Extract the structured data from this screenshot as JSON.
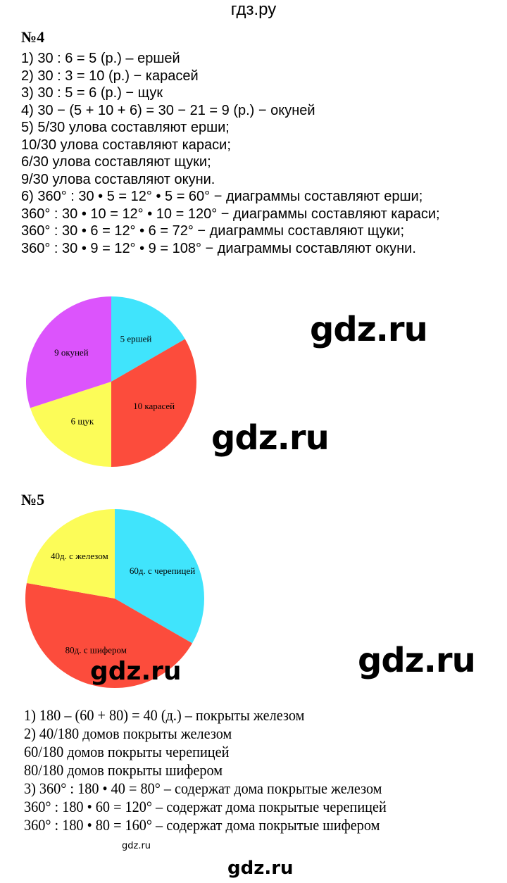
{
  "header": {
    "site": "гдз.ру"
  },
  "task4": {
    "title": "№4",
    "lines": [
      "1) 30 : 6 = 5 (р.) – ершей",
      "2) 30 : 3 = 10 (р.) − карасей",
      "3) 30 : 5 = 6 (р.) − щук",
      "4) 30 − (5 + 10 + 6) = 30 − 21 = 9 (р.) − окуней",
      "5) 5/30 улова составляют ерши;",
      "10/30 улова составляют караси;",
      "6/30 улова составляют щуки;",
      "9/30 улова составляют окуни.",
      "6) 360° : 30 • 5 = 12° • 5 = 60° − диаграммы составляют ерши;",
      "360° : 30 • 10 = 12° • 10 = 120° − диаграммы составляют караси;",
      "360° : 30 • 6 = 12° • 6 = 72° − диаграммы составляют щуки;",
      "360° : 30 • 9 = 12° • 9 = 108° − диаграммы составляют окуни."
    ]
  },
  "task5": {
    "title": "№5",
    "lines": [
      "1) 180 – (60 + 80) = 40 (д.) – покрыты железом",
      "2) 40/180 домов покрыты железом",
      "60/180 домов покрыты черепицей",
      "80/180 домов покрыты шифером",
      "3) 360° : 180 • 40 = 80° – содержат дома покрытые железом",
      "360° : 180 • 60 = 120° – содержат дома покрытые черепицей",
      "360° : 180 • 80 = 160° – содержат дома покрытые шифером"
    ]
  },
  "watermarks": [
    "gdz.ru",
    "gdz.ru",
    "gdz.ru",
    "gdz.ru",
    "gdz.ru",
    "gdz.ru"
  ],
  "chart_data": [
    {
      "type": "pie",
      "start": "top, clockwise",
      "slices": [
        {
          "label": "5 ершей",
          "value": 5,
          "color": "#40e4fc"
        },
        {
          "label": "10 карасей",
          "value": 10,
          "color": "#fc4c3c"
        },
        {
          "label": "6 щук",
          "value": 6,
          "color": "#fcfc58"
        },
        {
          "label": "9 окуней",
          "value": 9,
          "color": "#dc54fc"
        }
      ]
    },
    {
      "type": "pie",
      "start": "top, clockwise",
      "slices": [
        {
          "label": "60д. с черепицей",
          "value": 60,
          "color": "#40e4fc"
        },
        {
          "label": "80д. с шифером",
          "value": 80,
          "color": "#fc4c3c"
        },
        {
          "label": "40д. с железом",
          "value": 40,
          "color": "#fcfc58"
        }
      ]
    }
  ]
}
